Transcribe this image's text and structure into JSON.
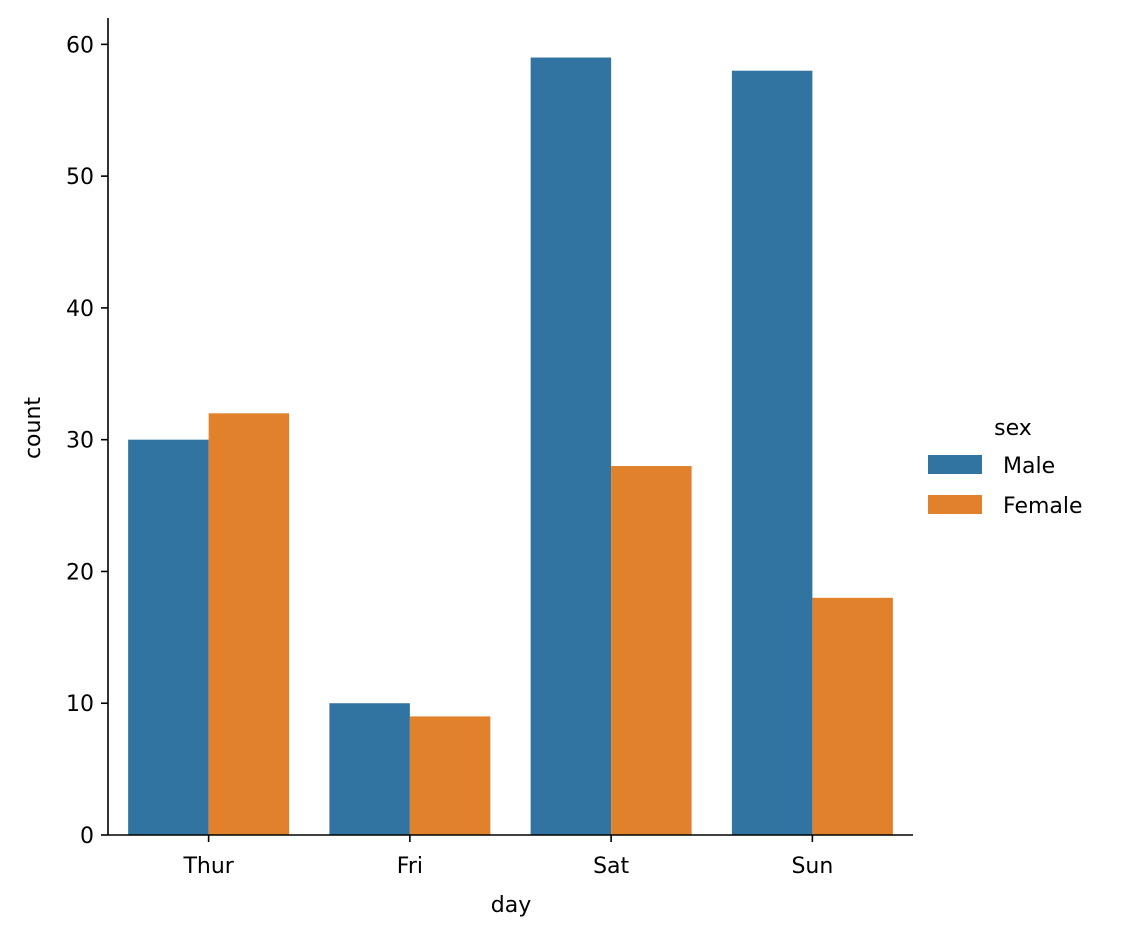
{
  "chart_data": {
    "type": "bar",
    "categories": [
      "Thur",
      "Fri",
      "Sat",
      "Sun"
    ],
    "series": [
      {
        "name": "Male",
        "values": [
          30,
          10,
          59,
          58
        ],
        "color": "#3274a1"
      },
      {
        "name": "Female",
        "values": [
          32,
          9,
          28,
          18
        ],
        "color": "#e1812c"
      }
    ],
    "xlabel": "day",
    "ylabel": "count",
    "ylim": [
      0,
      62
    ],
    "yticks": [
      0,
      10,
      20,
      30,
      40,
      50,
      60
    ],
    "legend": {
      "title": "sex",
      "placement": "right"
    },
    "grid": false
  }
}
